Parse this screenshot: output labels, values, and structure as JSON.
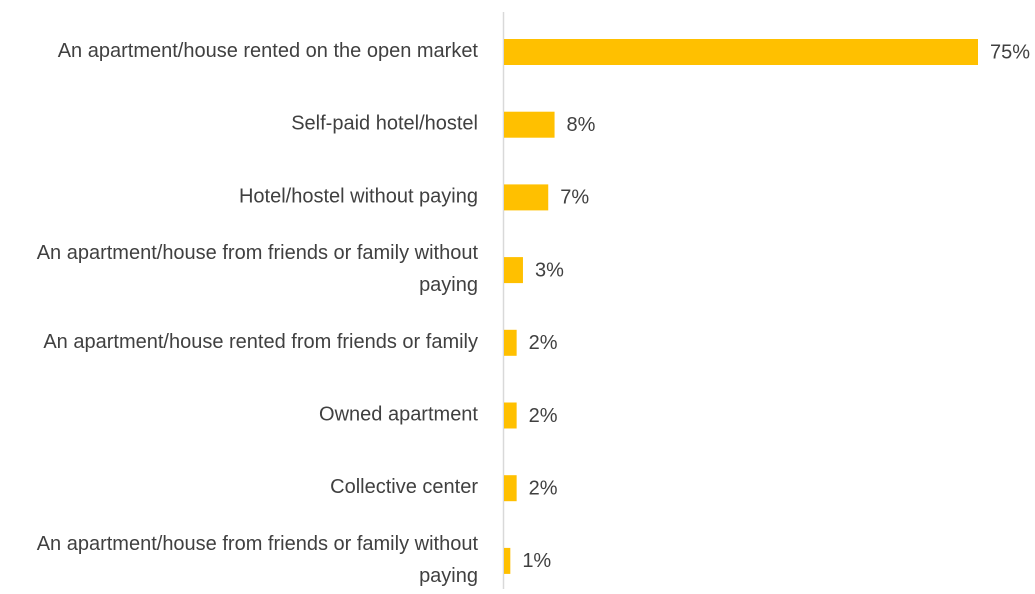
{
  "chart_data": {
    "type": "bar",
    "orientation": "horizontal",
    "categories": [
      "An apartment/house rented on the open market",
      "Self-paid hotel/hostel",
      "Hotel/hostel without paying",
      "An apartment/house from friends or family without paying",
      "An apartment/house rented from friends or family",
      "Owned apartment",
      "Collective center",
      "An apartment/house from friends or family without paying"
    ],
    "values": [
      75,
      8,
      7,
      3,
      2,
      2,
      2,
      1
    ],
    "value_labels": [
      "75%",
      "8%",
      "7%",
      "3%",
      "2%",
      "2%",
      "2%",
      "1%"
    ],
    "color": "#FFC000"
  }
}
